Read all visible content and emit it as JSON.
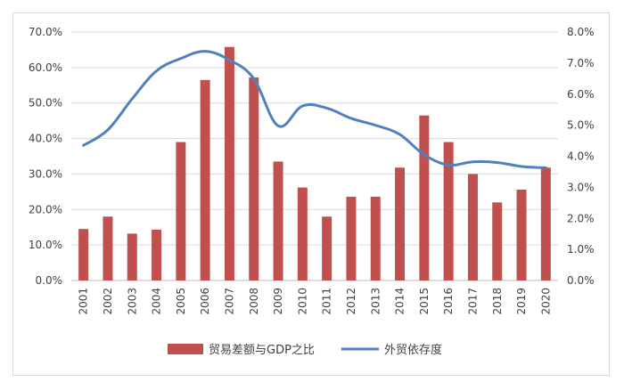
{
  "chart_data": {
    "type": "bar",
    "categories": [
      "2001",
      "2002",
      "2003",
      "2004",
      "2005",
      "2006",
      "2007",
      "2008",
      "2009",
      "2010",
      "2011",
      "2012",
      "2013",
      "2014",
      "2015",
      "2016",
      "2017",
      "2018",
      "2019",
      "2020"
    ],
    "series": [
      {
        "name": "贸易差额与GDP之比",
        "type": "bar",
        "axis": "left",
        "color": "#c0504d",
        "values": [
          14.5,
          18.0,
          13.2,
          14.3,
          39.0,
          56.5,
          65.8,
          57.2,
          33.5,
          26.2,
          18.0,
          23.6,
          23.6,
          31.8,
          46.5,
          39.0,
          30.0,
          22.0,
          25.6,
          31.8
        ]
      },
      {
        "name": "外贸依存度",
        "type": "line",
        "axis": "right",
        "color": "#4f81bd",
        "values": [
          4.35,
          4.85,
          5.85,
          6.75,
          7.15,
          7.38,
          7.1,
          6.5,
          4.98,
          5.62,
          5.55,
          5.22,
          5.0,
          4.7,
          4.05,
          3.72,
          3.82,
          3.8,
          3.67,
          3.63
        ]
      }
    ],
    "y_left": {
      "min": 0,
      "max": 70,
      "step": 10,
      "tick_labels": [
        "0.0%",
        "10.0%",
        "20.0%",
        "30.0%",
        "40.0%",
        "50.0%",
        "60.0%",
        "70.0%"
      ]
    },
    "y_right": {
      "min": 0,
      "max": 8,
      "step": 1,
      "tick_labels": [
        "0.0%",
        "1.0%",
        "2.0%",
        "3.0%",
        "4.0%",
        "5.0%",
        "6.0%",
        "7.0%",
        "8.0%"
      ]
    },
    "title": "",
    "xlabel": "",
    "ylabel": "",
    "grid": true,
    "legend": {
      "position": "bottom",
      "entries": [
        "贸易差额与GDP之比",
        "外贸依存度"
      ]
    }
  }
}
